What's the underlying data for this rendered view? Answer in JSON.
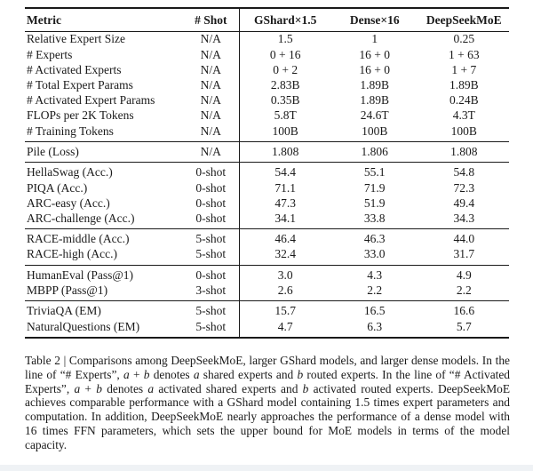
{
  "page": {
    "background_color": "#ffffff",
    "text_color": "#1a1a1a",
    "rule_color": "#1a1a1a",
    "bottom_strip_color": "#eff2f5"
  },
  "table": {
    "columns": [
      "Metric",
      "# Shot",
      "GShard×1.5",
      "Dense×16",
      "DeepSeekMoE"
    ],
    "sections": [
      {
        "rows": [
          [
            "Relative Expert Size",
            "N/A",
            "1.5",
            "1",
            "0.25"
          ],
          [
            "# Experts",
            "N/A",
            "0 + 16",
            "16 + 0",
            "1 + 63"
          ],
          [
            "# Activated Experts",
            "N/A",
            "0 + 2",
            "16 + 0",
            "1 + 7"
          ],
          [
            "# Total Expert Params",
            "N/A",
            "2.83B",
            "1.89B",
            "1.89B"
          ],
          [
            "# Activated Expert Params",
            "N/A",
            "0.35B",
            "1.89B",
            "0.24B"
          ],
          [
            "FLOPs per 2K Tokens",
            "N/A",
            "5.8T",
            "24.6T",
            "4.3T"
          ],
          [
            "# Training Tokens",
            "N/A",
            "100B",
            "100B",
            "100B"
          ]
        ]
      },
      {
        "rows": [
          [
            "Pile (Loss)",
            "N/A",
            "1.808",
            "1.806",
            "1.808"
          ]
        ]
      },
      {
        "rows": [
          [
            "HellaSwag (Acc.)",
            "0-shot",
            "54.4",
            "55.1",
            "54.8"
          ],
          [
            "PIQA (Acc.)",
            "0-shot",
            "71.1",
            "71.9",
            "72.3"
          ],
          [
            "ARC-easy (Acc.)",
            "0-shot",
            "47.3",
            "51.9",
            "49.4"
          ],
          [
            "ARC-challenge (Acc.)",
            "0-shot",
            "34.1",
            "33.8",
            "34.3"
          ]
        ]
      },
      {
        "rows": [
          [
            "RACE-middle (Acc.)",
            "5-shot",
            "46.4",
            "46.3",
            "44.0"
          ],
          [
            "RACE-high (Acc.)",
            "5-shot",
            "32.4",
            "33.0",
            "31.7"
          ]
        ]
      },
      {
        "rows": [
          [
            "HumanEval (Pass@1)",
            "0-shot",
            "3.0",
            "4.3",
            "4.9"
          ],
          [
            "MBPP (Pass@1)",
            "3-shot",
            "2.6",
            "2.2",
            "2.2"
          ]
        ]
      },
      {
        "rows": [
          [
            "TriviaQA (EM)",
            "5-shot",
            "15.7",
            "16.5",
            "16.6"
          ],
          [
            "NaturalQuestions (EM)",
            "5-shot",
            "4.7",
            "6.3",
            "5.7"
          ]
        ]
      }
    ]
  },
  "caption": {
    "segments": [
      {
        "t": "Table 2 | Comparisons among DeepSeekMoE, larger GShard models, and larger dense models. In the line of “# Experts”, ",
        "i": false
      },
      {
        "t": "a",
        "i": true
      },
      {
        "t": " + ",
        "i": false
      },
      {
        "t": "b",
        "i": true
      },
      {
        "t": " denotes ",
        "i": false
      },
      {
        "t": "a",
        "i": true
      },
      {
        "t": " shared experts and ",
        "i": false
      },
      {
        "t": "b",
        "i": true
      },
      {
        "t": " routed experts.  In the line of “# Activated Experts”, ",
        "i": false
      },
      {
        "t": "a",
        "i": true
      },
      {
        "t": " + ",
        "i": false
      },
      {
        "t": "b",
        "i": true
      },
      {
        "t": " denotes ",
        "i": false
      },
      {
        "t": "a",
        "i": true
      },
      {
        "t": " activated shared experts and ",
        "i": false
      },
      {
        "t": "b",
        "i": true
      },
      {
        "t": " activated routed experts. DeepSeekMoE achieves comparable performance with a GShard model containing 1.5 times expert parameters and computation. In addition, DeepSeekMoE nearly approaches the performance of a dense model with 16 times FFN parameters, which sets the upper bound for MoE models in terms of the model capacity.",
        "i": false
      }
    ]
  }
}
